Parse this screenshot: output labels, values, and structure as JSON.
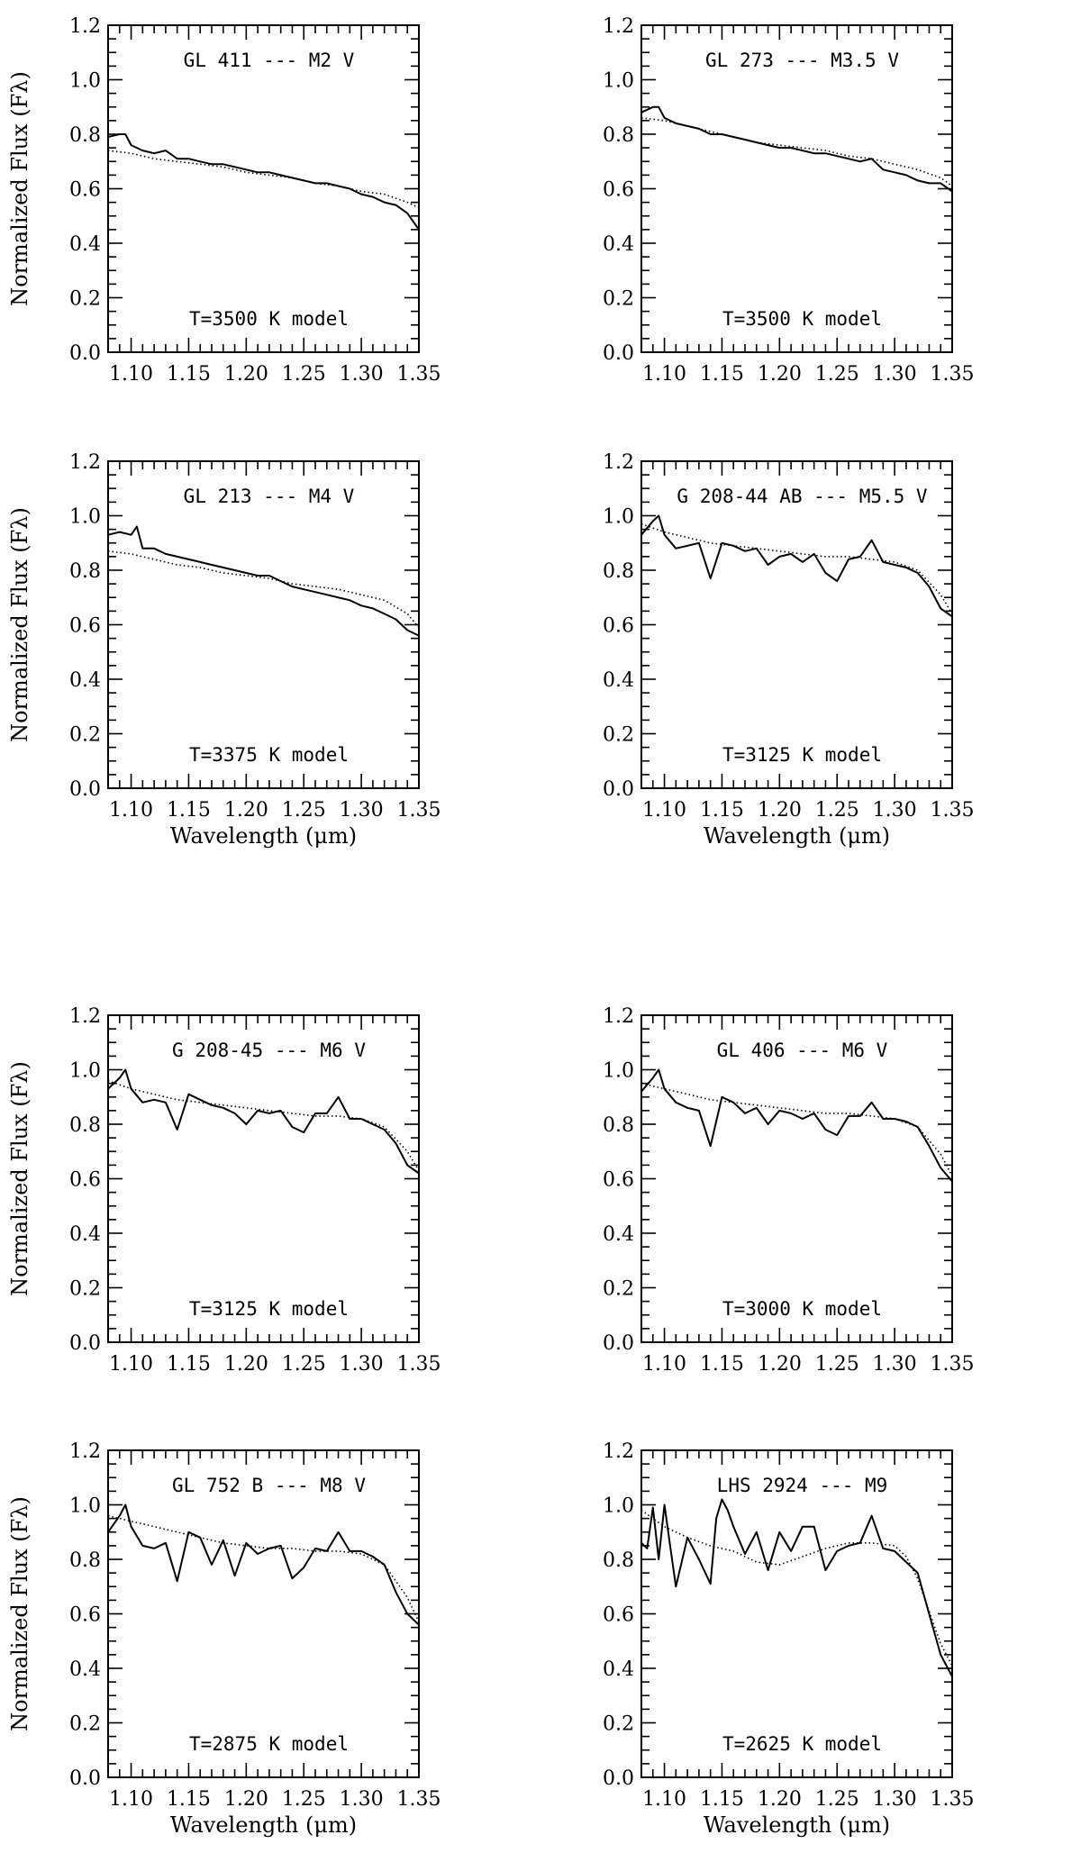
{
  "figure": {
    "xlabel": "Wavelength (μm)",
    "ylabel": "Normalized Flux (Fλ)"
  },
  "chart_data": [
    {
      "type": "line",
      "title": "GL 411 --- M2 V",
      "annotation": "T=3500 K model",
      "xlabel": "",
      "ylabel": "Normalized Flux (Fλ)",
      "xlim": [
        1.08,
        1.35
      ],
      "ylim": [
        0.0,
        1.2
      ],
      "xticks": [
        "1.10",
        "1.15",
        "1.20",
        "1.25",
        "1.30",
        "1.35"
      ],
      "yticks": [
        "0.0",
        "0.2",
        "0.4",
        "0.6",
        "0.8",
        "1.0",
        "1.2"
      ],
      "series": [
        {
          "style": "solid",
          "x": [
            1.08,
            1.09,
            1.095,
            1.1,
            1.11,
            1.12,
            1.13,
            1.14,
            1.15,
            1.16,
            1.17,
            1.18,
            1.19,
            1.2,
            1.21,
            1.22,
            1.23,
            1.24,
            1.25,
            1.26,
            1.27,
            1.28,
            1.29,
            1.3,
            1.31,
            1.32,
            1.33,
            1.34,
            1.35
          ],
          "y": [
            0.79,
            0.8,
            0.8,
            0.76,
            0.74,
            0.73,
            0.74,
            0.71,
            0.71,
            0.7,
            0.69,
            0.69,
            0.68,
            0.67,
            0.66,
            0.66,
            0.65,
            0.64,
            0.63,
            0.62,
            0.62,
            0.61,
            0.6,
            0.58,
            0.57,
            0.55,
            0.54,
            0.51,
            0.45
          ]
        },
        {
          "style": "dotted",
          "x": [
            1.08,
            1.1,
            1.12,
            1.14,
            1.16,
            1.18,
            1.2,
            1.22,
            1.24,
            1.26,
            1.28,
            1.3,
            1.32,
            1.34,
            1.35
          ],
          "y": [
            0.74,
            0.73,
            0.71,
            0.7,
            0.69,
            0.68,
            0.66,
            0.65,
            0.64,
            0.62,
            0.61,
            0.59,
            0.58,
            0.55,
            0.53
          ]
        }
      ]
    },
    {
      "type": "line",
      "title": "GL 273 --- M3.5 V",
      "annotation": "T=3500 K model",
      "xlabel": "",
      "ylabel": "",
      "xlim": [
        1.08,
        1.35
      ],
      "ylim": [
        0.0,
        1.2
      ],
      "xticks": [
        "1.10",
        "1.15",
        "1.20",
        "1.25",
        "1.30",
        "1.35"
      ],
      "yticks": [
        "0.0",
        "0.2",
        "0.4",
        "0.6",
        "0.8",
        "1.0",
        "1.2"
      ],
      "series": [
        {
          "style": "solid",
          "x": [
            1.08,
            1.09,
            1.095,
            1.1,
            1.11,
            1.12,
            1.13,
            1.14,
            1.15,
            1.16,
            1.17,
            1.18,
            1.19,
            1.2,
            1.21,
            1.22,
            1.23,
            1.24,
            1.25,
            1.26,
            1.27,
            1.28,
            1.29,
            1.3,
            1.31,
            1.32,
            1.33,
            1.34,
            1.35
          ],
          "y": [
            0.88,
            0.9,
            0.9,
            0.86,
            0.84,
            0.83,
            0.82,
            0.8,
            0.8,
            0.79,
            0.78,
            0.77,
            0.76,
            0.75,
            0.75,
            0.74,
            0.73,
            0.73,
            0.72,
            0.71,
            0.7,
            0.71,
            0.67,
            0.66,
            0.65,
            0.63,
            0.62,
            0.62,
            0.59
          ]
        },
        {
          "style": "dotted",
          "x": [
            1.08,
            1.1,
            1.12,
            1.14,
            1.16,
            1.18,
            1.2,
            1.22,
            1.24,
            1.26,
            1.28,
            1.3,
            1.32,
            1.34,
            1.35
          ],
          "y": [
            0.86,
            0.85,
            0.83,
            0.81,
            0.79,
            0.77,
            0.76,
            0.75,
            0.74,
            0.72,
            0.71,
            0.69,
            0.67,
            0.64,
            0.61
          ]
        }
      ]
    },
    {
      "type": "line",
      "title": "GL 213 --- M4 V",
      "annotation": "T=3375 K model",
      "xlabel": "Wavelength (μm)",
      "ylabel": "Normalized Flux (Fλ)",
      "xlim": [
        1.08,
        1.35
      ],
      "ylim": [
        0.0,
        1.2
      ],
      "xticks": [
        "1.10",
        "1.15",
        "1.20",
        "1.25",
        "1.30",
        "1.35"
      ],
      "yticks": [
        "0.0",
        "0.2",
        "0.4",
        "0.6",
        "0.8",
        "1.0",
        "1.2"
      ],
      "series": [
        {
          "style": "solid",
          "x": [
            1.08,
            1.09,
            1.1,
            1.105,
            1.11,
            1.12,
            1.13,
            1.14,
            1.15,
            1.16,
            1.17,
            1.18,
            1.19,
            1.2,
            1.21,
            1.22,
            1.23,
            1.24,
            1.25,
            1.26,
            1.27,
            1.28,
            1.29,
            1.3,
            1.31,
            1.32,
            1.33,
            1.34,
            1.35
          ],
          "y": [
            0.93,
            0.94,
            0.93,
            0.96,
            0.88,
            0.88,
            0.86,
            0.85,
            0.84,
            0.83,
            0.82,
            0.81,
            0.8,
            0.79,
            0.78,
            0.78,
            0.76,
            0.74,
            0.73,
            0.72,
            0.71,
            0.7,
            0.69,
            0.67,
            0.66,
            0.64,
            0.62,
            0.58,
            0.56
          ]
        },
        {
          "style": "dotted",
          "x": [
            1.08,
            1.1,
            1.12,
            1.14,
            1.16,
            1.18,
            1.2,
            1.22,
            1.24,
            1.26,
            1.28,
            1.3,
            1.32,
            1.34,
            1.35
          ],
          "y": [
            0.87,
            0.86,
            0.84,
            0.82,
            0.81,
            0.79,
            0.78,
            0.77,
            0.75,
            0.74,
            0.73,
            0.71,
            0.69,
            0.64,
            0.59
          ]
        }
      ]
    },
    {
      "type": "line",
      "title": "G 208-44 AB --- M5.5 V",
      "annotation": "T=3125 K model",
      "xlabel": "Wavelength (μm)",
      "ylabel": "",
      "xlim": [
        1.08,
        1.35
      ],
      "ylim": [
        0.0,
        1.2
      ],
      "xticks": [
        "1.10",
        "1.15",
        "1.20",
        "1.25",
        "1.30",
        "1.35"
      ],
      "yticks": [
        "0.0",
        "0.2",
        "0.4",
        "0.6",
        "0.8",
        "1.0",
        "1.2"
      ],
      "series": [
        {
          "style": "solid",
          "x": [
            1.08,
            1.09,
            1.095,
            1.1,
            1.11,
            1.12,
            1.13,
            1.14,
            1.15,
            1.16,
            1.17,
            1.18,
            1.19,
            1.2,
            1.21,
            1.22,
            1.23,
            1.24,
            1.25,
            1.26,
            1.27,
            1.28,
            1.29,
            1.3,
            1.31,
            1.32,
            1.33,
            1.34,
            1.35
          ],
          "y": [
            0.93,
            0.98,
            1.0,
            0.93,
            0.88,
            0.89,
            0.9,
            0.77,
            0.9,
            0.89,
            0.87,
            0.88,
            0.82,
            0.85,
            0.86,
            0.83,
            0.86,
            0.79,
            0.76,
            0.84,
            0.85,
            0.91,
            0.83,
            0.82,
            0.81,
            0.79,
            0.74,
            0.66,
            0.63
          ]
        },
        {
          "style": "dotted",
          "x": [
            1.08,
            1.1,
            1.12,
            1.14,
            1.16,
            1.18,
            1.2,
            1.22,
            1.24,
            1.26,
            1.28,
            1.3,
            1.32,
            1.34,
            1.35
          ],
          "y": [
            0.97,
            0.94,
            0.92,
            0.9,
            0.89,
            0.88,
            0.87,
            0.86,
            0.85,
            0.85,
            0.84,
            0.83,
            0.8,
            0.71,
            0.64
          ]
        }
      ]
    },
    {
      "type": "line",
      "title": "G 208-45 --- M6 V",
      "annotation": "T=3125 K model",
      "xlabel": "",
      "ylabel": "Normalized Flux (Fλ)",
      "xlim": [
        1.08,
        1.35
      ],
      "ylim": [
        0.0,
        1.2
      ],
      "xticks": [
        "1.10",
        "1.15",
        "1.20",
        "1.25",
        "1.30",
        "1.35"
      ],
      "yticks": [
        "0.0",
        "0.2",
        "0.4",
        "0.6",
        "0.8",
        "1.0",
        "1.2"
      ],
      "series": [
        {
          "style": "solid",
          "x": [
            1.08,
            1.09,
            1.095,
            1.1,
            1.11,
            1.12,
            1.13,
            1.14,
            1.15,
            1.16,
            1.17,
            1.18,
            1.19,
            1.2,
            1.21,
            1.22,
            1.23,
            1.24,
            1.25,
            1.26,
            1.27,
            1.28,
            1.29,
            1.3,
            1.31,
            1.32,
            1.33,
            1.34,
            1.35
          ],
          "y": [
            0.93,
            0.97,
            1.0,
            0.93,
            0.88,
            0.89,
            0.88,
            0.78,
            0.91,
            0.89,
            0.87,
            0.86,
            0.84,
            0.8,
            0.85,
            0.84,
            0.85,
            0.79,
            0.77,
            0.84,
            0.84,
            0.9,
            0.82,
            0.82,
            0.8,
            0.78,
            0.73,
            0.65,
            0.62
          ]
        },
        {
          "style": "dotted",
          "x": [
            1.08,
            1.1,
            1.12,
            1.14,
            1.16,
            1.18,
            1.2,
            1.22,
            1.24,
            1.26,
            1.28,
            1.3,
            1.32,
            1.34,
            1.35
          ],
          "y": [
            0.96,
            0.93,
            0.91,
            0.89,
            0.88,
            0.87,
            0.86,
            0.85,
            0.84,
            0.83,
            0.83,
            0.82,
            0.79,
            0.7,
            0.63
          ]
        }
      ]
    },
    {
      "type": "line",
      "title": "GL 406 --- M6 V",
      "annotation": "T=3000 K model",
      "xlabel": "",
      "ylabel": "",
      "xlim": [
        1.08,
        1.35
      ],
      "ylim": [
        0.0,
        1.2
      ],
      "xticks": [
        "1.10",
        "1.15",
        "1.20",
        "1.25",
        "1.30",
        "1.35"
      ],
      "yticks": [
        "0.0",
        "0.2",
        "0.4",
        "0.6",
        "0.8",
        "1.0",
        "1.2"
      ],
      "series": [
        {
          "style": "solid",
          "x": [
            1.08,
            1.09,
            1.095,
            1.1,
            1.11,
            1.12,
            1.13,
            1.14,
            1.15,
            1.16,
            1.17,
            1.18,
            1.19,
            1.2,
            1.21,
            1.22,
            1.23,
            1.24,
            1.25,
            1.26,
            1.27,
            1.28,
            1.29,
            1.3,
            1.31,
            1.32,
            1.33,
            1.34,
            1.35
          ],
          "y": [
            0.92,
            0.97,
            1.0,
            0.93,
            0.88,
            0.86,
            0.85,
            0.72,
            0.9,
            0.88,
            0.84,
            0.86,
            0.8,
            0.85,
            0.84,
            0.82,
            0.84,
            0.78,
            0.76,
            0.83,
            0.83,
            0.88,
            0.82,
            0.82,
            0.81,
            0.79,
            0.72,
            0.64,
            0.59
          ]
        },
        {
          "style": "dotted",
          "x": [
            1.08,
            1.1,
            1.12,
            1.14,
            1.16,
            1.18,
            1.2,
            1.22,
            1.24,
            1.26,
            1.28,
            1.3,
            1.32,
            1.34,
            1.35
          ],
          "y": [
            0.95,
            0.93,
            0.91,
            0.89,
            0.88,
            0.87,
            0.86,
            0.85,
            0.84,
            0.84,
            0.83,
            0.82,
            0.79,
            0.69,
            0.61
          ]
        }
      ]
    },
    {
      "type": "line",
      "title": "GL 752 B --- M8 V",
      "annotation": "T=2875 K model",
      "xlabel": "Wavelength (μm)",
      "ylabel": "Normalized Flux (Fλ)",
      "xlim": [
        1.08,
        1.35
      ],
      "ylim": [
        0.0,
        1.2
      ],
      "xticks": [
        "1.10",
        "1.15",
        "1.20",
        "1.25",
        "1.30",
        "1.35"
      ],
      "yticks": [
        "0.0",
        "0.2",
        "0.4",
        "0.6",
        "0.8",
        "1.0",
        "1.2"
      ],
      "series": [
        {
          "style": "solid",
          "x": [
            1.08,
            1.09,
            1.095,
            1.1,
            1.11,
            1.12,
            1.13,
            1.14,
            1.15,
            1.16,
            1.17,
            1.18,
            1.19,
            1.2,
            1.21,
            1.22,
            1.23,
            1.24,
            1.25,
            1.26,
            1.27,
            1.28,
            1.29,
            1.3,
            1.31,
            1.32,
            1.33,
            1.34,
            1.35
          ],
          "y": [
            0.9,
            0.96,
            1.0,
            0.92,
            0.85,
            0.84,
            0.86,
            0.72,
            0.9,
            0.88,
            0.78,
            0.87,
            0.74,
            0.86,
            0.82,
            0.84,
            0.85,
            0.73,
            0.77,
            0.84,
            0.83,
            0.9,
            0.83,
            0.83,
            0.81,
            0.78,
            0.68,
            0.6,
            0.56
          ]
        },
        {
          "style": "dotted",
          "x": [
            1.08,
            1.1,
            1.12,
            1.14,
            1.16,
            1.18,
            1.2,
            1.22,
            1.24,
            1.26,
            1.28,
            1.3,
            1.32,
            1.34,
            1.35
          ],
          "y": [
            0.96,
            0.94,
            0.92,
            0.9,
            0.88,
            0.86,
            0.85,
            0.84,
            0.84,
            0.83,
            0.83,
            0.82,
            0.78,
            0.66,
            0.57
          ]
        }
      ]
    },
    {
      "type": "line",
      "title": "LHS 2924 --- M9",
      "annotation": "T=2625 K model",
      "xlabel": "Wavelength (μm)",
      "ylabel": "",
      "xlim": [
        1.08,
        1.35
      ],
      "ylim": [
        0.0,
        1.2
      ],
      "xticks": [
        "1.10",
        "1.15",
        "1.20",
        "1.25",
        "1.30",
        "1.35"
      ],
      "yticks": [
        "0.0",
        "0.2",
        "0.4",
        "0.6",
        "0.8",
        "1.0",
        "1.2"
      ],
      "series": [
        {
          "style": "solid",
          "x": [
            1.08,
            1.085,
            1.09,
            1.095,
            1.1,
            1.105,
            1.11,
            1.12,
            1.13,
            1.14,
            1.145,
            1.15,
            1.155,
            1.16,
            1.17,
            1.18,
            1.19,
            1.2,
            1.21,
            1.22,
            1.23,
            1.24,
            1.25,
            1.26,
            1.27,
            1.28,
            1.29,
            1.3,
            1.31,
            1.32,
            1.33,
            1.34,
            1.35
          ],
          "y": [
            0.86,
            0.84,
            0.99,
            0.8,
            1.0,
            0.85,
            0.7,
            0.88,
            0.8,
            0.71,
            0.95,
            1.02,
            0.98,
            0.92,
            0.82,
            0.9,
            0.76,
            0.9,
            0.83,
            0.92,
            0.92,
            0.76,
            0.83,
            0.85,
            0.86,
            0.96,
            0.84,
            0.83,
            0.79,
            0.75,
            0.6,
            0.45,
            0.37
          ]
        },
        {
          "style": "dotted",
          "x": [
            1.08,
            1.1,
            1.12,
            1.14,
            1.16,
            1.18,
            1.2,
            1.22,
            1.24,
            1.26,
            1.28,
            1.3,
            1.31,
            1.32,
            1.33,
            1.34,
            1.35
          ],
          "y": [
            0.98,
            0.92,
            0.88,
            0.85,
            0.83,
            0.79,
            0.78,
            0.81,
            0.84,
            0.86,
            0.86,
            0.85,
            0.81,
            0.73,
            0.61,
            0.49,
            0.41
          ]
        }
      ]
    }
  ]
}
